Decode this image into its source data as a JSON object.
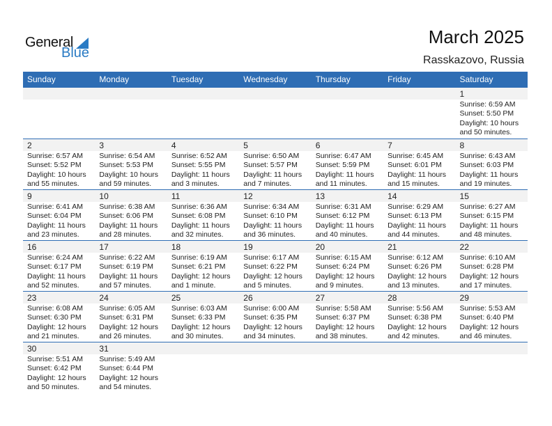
{
  "logo": {
    "text_general": "General",
    "text_blue": "Blue"
  },
  "title": "March 2025",
  "location": "Rasskazovo, Russia",
  "colors": {
    "header": "#2e6db4",
    "logo_blue": "#2a7bc4",
    "date_strip": "#f2f2f2"
  },
  "weekdays": [
    "Sunday",
    "Monday",
    "Tuesday",
    "Wednesday",
    "Thursday",
    "Friday",
    "Saturday"
  ],
  "weeks": [
    [
      null,
      null,
      null,
      null,
      null,
      null,
      {
        "date": "1",
        "sunrise": "Sunrise: 6:59 AM",
        "sunset": "Sunset: 5:50 PM",
        "daylight": "Daylight: 10 hours",
        "minutes": "and 50 minutes."
      }
    ],
    [
      {
        "date": "2",
        "sunrise": "Sunrise: 6:57 AM",
        "sunset": "Sunset: 5:52 PM",
        "daylight": "Daylight: 10 hours",
        "minutes": "and 55 minutes."
      },
      {
        "date": "3",
        "sunrise": "Sunrise: 6:54 AM",
        "sunset": "Sunset: 5:53 PM",
        "daylight": "Daylight: 10 hours",
        "minutes": "and 59 minutes."
      },
      {
        "date": "4",
        "sunrise": "Sunrise: 6:52 AM",
        "sunset": "Sunset: 5:55 PM",
        "daylight": "Daylight: 11 hours",
        "minutes": "and 3 minutes."
      },
      {
        "date": "5",
        "sunrise": "Sunrise: 6:50 AM",
        "sunset": "Sunset: 5:57 PM",
        "daylight": "Daylight: 11 hours",
        "minutes": "and 7 minutes."
      },
      {
        "date": "6",
        "sunrise": "Sunrise: 6:47 AM",
        "sunset": "Sunset: 5:59 PM",
        "daylight": "Daylight: 11 hours",
        "minutes": "and 11 minutes."
      },
      {
        "date": "7",
        "sunrise": "Sunrise: 6:45 AM",
        "sunset": "Sunset: 6:01 PM",
        "daylight": "Daylight: 11 hours",
        "minutes": "and 15 minutes."
      },
      {
        "date": "8",
        "sunrise": "Sunrise: 6:43 AM",
        "sunset": "Sunset: 6:03 PM",
        "daylight": "Daylight: 11 hours",
        "minutes": "and 19 minutes."
      }
    ],
    [
      {
        "date": "9",
        "sunrise": "Sunrise: 6:41 AM",
        "sunset": "Sunset: 6:04 PM",
        "daylight": "Daylight: 11 hours",
        "minutes": "and 23 minutes."
      },
      {
        "date": "10",
        "sunrise": "Sunrise: 6:38 AM",
        "sunset": "Sunset: 6:06 PM",
        "daylight": "Daylight: 11 hours",
        "minutes": "and 28 minutes."
      },
      {
        "date": "11",
        "sunrise": "Sunrise: 6:36 AM",
        "sunset": "Sunset: 6:08 PM",
        "daylight": "Daylight: 11 hours",
        "minutes": "and 32 minutes."
      },
      {
        "date": "12",
        "sunrise": "Sunrise: 6:34 AM",
        "sunset": "Sunset: 6:10 PM",
        "daylight": "Daylight: 11 hours",
        "minutes": "and 36 minutes."
      },
      {
        "date": "13",
        "sunrise": "Sunrise: 6:31 AM",
        "sunset": "Sunset: 6:12 PM",
        "daylight": "Daylight: 11 hours",
        "minutes": "and 40 minutes."
      },
      {
        "date": "14",
        "sunrise": "Sunrise: 6:29 AM",
        "sunset": "Sunset: 6:13 PM",
        "daylight": "Daylight: 11 hours",
        "minutes": "and 44 minutes."
      },
      {
        "date": "15",
        "sunrise": "Sunrise: 6:27 AM",
        "sunset": "Sunset: 6:15 PM",
        "daylight": "Daylight: 11 hours",
        "minutes": "and 48 minutes."
      }
    ],
    [
      {
        "date": "16",
        "sunrise": "Sunrise: 6:24 AM",
        "sunset": "Sunset: 6:17 PM",
        "daylight": "Daylight: 11 hours",
        "minutes": "and 52 minutes."
      },
      {
        "date": "17",
        "sunrise": "Sunrise: 6:22 AM",
        "sunset": "Sunset: 6:19 PM",
        "daylight": "Daylight: 11 hours",
        "minutes": "and 57 minutes."
      },
      {
        "date": "18",
        "sunrise": "Sunrise: 6:19 AM",
        "sunset": "Sunset: 6:21 PM",
        "daylight": "Daylight: 12 hours",
        "minutes": "and 1 minute."
      },
      {
        "date": "19",
        "sunrise": "Sunrise: 6:17 AM",
        "sunset": "Sunset: 6:22 PM",
        "daylight": "Daylight: 12 hours",
        "minutes": "and 5 minutes."
      },
      {
        "date": "20",
        "sunrise": "Sunrise: 6:15 AM",
        "sunset": "Sunset: 6:24 PM",
        "daylight": "Daylight: 12 hours",
        "minutes": "and 9 minutes."
      },
      {
        "date": "21",
        "sunrise": "Sunrise: 6:12 AM",
        "sunset": "Sunset: 6:26 PM",
        "daylight": "Daylight: 12 hours",
        "minutes": "and 13 minutes."
      },
      {
        "date": "22",
        "sunrise": "Sunrise: 6:10 AM",
        "sunset": "Sunset: 6:28 PM",
        "daylight": "Daylight: 12 hours",
        "minutes": "and 17 minutes."
      }
    ],
    [
      {
        "date": "23",
        "sunrise": "Sunrise: 6:08 AM",
        "sunset": "Sunset: 6:30 PM",
        "daylight": "Daylight: 12 hours",
        "minutes": "and 21 minutes."
      },
      {
        "date": "24",
        "sunrise": "Sunrise: 6:05 AM",
        "sunset": "Sunset: 6:31 PM",
        "daylight": "Daylight: 12 hours",
        "minutes": "and 26 minutes."
      },
      {
        "date": "25",
        "sunrise": "Sunrise: 6:03 AM",
        "sunset": "Sunset: 6:33 PM",
        "daylight": "Daylight: 12 hours",
        "minutes": "and 30 minutes."
      },
      {
        "date": "26",
        "sunrise": "Sunrise: 6:00 AM",
        "sunset": "Sunset: 6:35 PM",
        "daylight": "Daylight: 12 hours",
        "minutes": "and 34 minutes."
      },
      {
        "date": "27",
        "sunrise": "Sunrise: 5:58 AM",
        "sunset": "Sunset: 6:37 PM",
        "daylight": "Daylight: 12 hours",
        "minutes": "and 38 minutes."
      },
      {
        "date": "28",
        "sunrise": "Sunrise: 5:56 AM",
        "sunset": "Sunset: 6:38 PM",
        "daylight": "Daylight: 12 hours",
        "minutes": "and 42 minutes."
      },
      {
        "date": "29",
        "sunrise": "Sunrise: 5:53 AM",
        "sunset": "Sunset: 6:40 PM",
        "daylight": "Daylight: 12 hours",
        "minutes": "and 46 minutes."
      }
    ],
    [
      {
        "date": "30",
        "sunrise": "Sunrise: 5:51 AM",
        "sunset": "Sunset: 6:42 PM",
        "daylight": "Daylight: 12 hours",
        "minutes": "and 50 minutes."
      },
      {
        "date": "31",
        "sunrise": "Sunrise: 5:49 AM",
        "sunset": "Sunset: 6:44 PM",
        "daylight": "Daylight: 12 hours",
        "minutes": "and 54 minutes."
      },
      null,
      null,
      null,
      null,
      null
    ]
  ]
}
